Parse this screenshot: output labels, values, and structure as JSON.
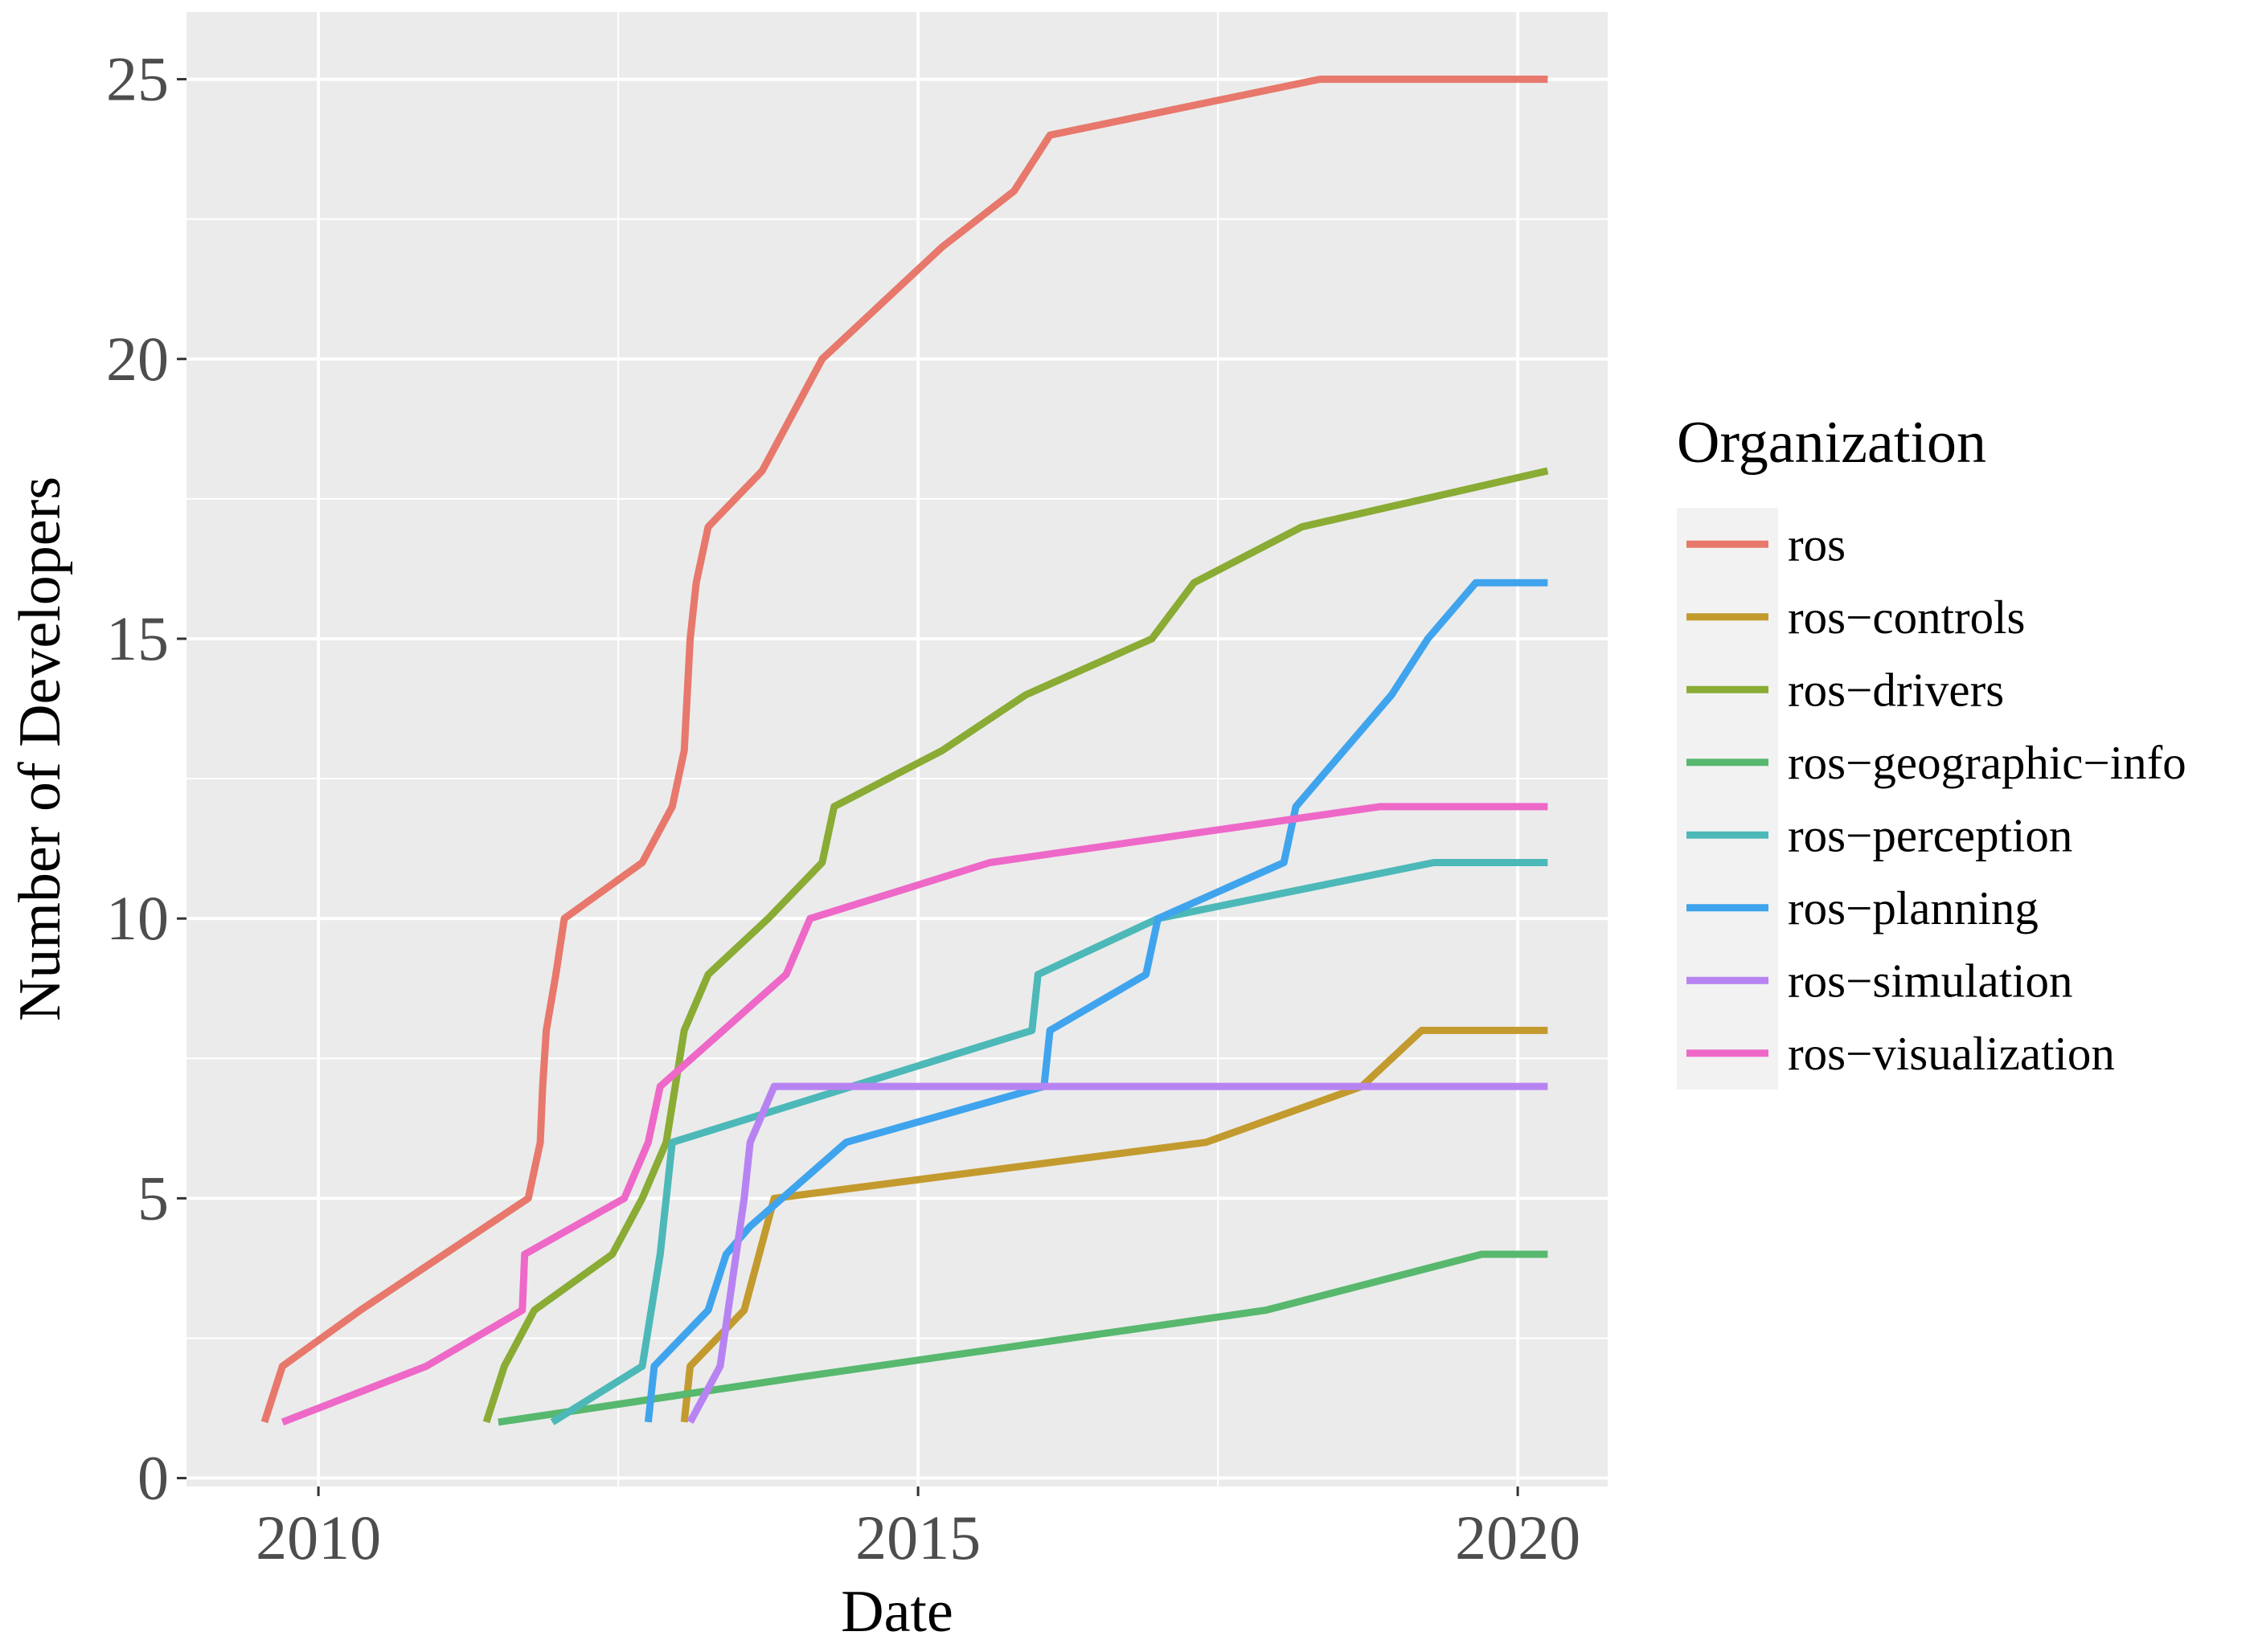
{
  "chart_data": {
    "type": "line",
    "xlabel": "Date",
    "ylabel": "Number of Developers",
    "x_tick_labels": [
      "2010",
      "2015",
      "2020"
    ],
    "y_tick_labels": [
      "0",
      "5",
      "10",
      "15",
      "20",
      "25"
    ],
    "xlim": [
      2008.9,
      2020.75
    ],
    "ylim": [
      -0.15,
      26.2
    ],
    "grid": true,
    "legend": {
      "title": "Organization",
      "position": "right"
    },
    "background_color": "#ebebeb",
    "gridline_color": "#ffffff",
    "series": [
      {
        "name": "ros",
        "color": "#e7786b",
        "points": [
          [
            2009.55,
            1
          ],
          [
            2009.7,
            2
          ],
          [
            2010.35,
            3
          ],
          [
            2011.75,
            5
          ],
          [
            2011.85,
            6
          ],
          [
            2011.87,
            7
          ],
          [
            2011.9,
            8
          ],
          [
            2011.98,
            9
          ],
          [
            2012.05,
            10
          ],
          [
            2012.7,
            11
          ],
          [
            2012.95,
            12
          ],
          [
            2013.05,
            13
          ],
          [
            2013.1,
            15
          ],
          [
            2013.15,
            16
          ],
          [
            2013.25,
            17
          ],
          [
            2013.7,
            18
          ],
          [
            2013.95,
            19
          ],
          [
            2014.2,
            20
          ],
          [
            2014.7,
            21
          ],
          [
            2015.2,
            22
          ],
          [
            2015.8,
            23
          ],
          [
            2016.1,
            24
          ],
          [
            2018.35,
            25
          ],
          [
            2020.25,
            25
          ]
        ]
      },
      {
        "name": "ros-controls",
        "color": "#c39a2e",
        "points": [
          [
            2013.05,
            1
          ],
          [
            2013.1,
            2
          ],
          [
            2013.55,
            3
          ],
          [
            2013.8,
            5
          ],
          [
            2017.4,
            6
          ],
          [
            2018.7,
            7
          ],
          [
            2019.2,
            8
          ],
          [
            2020.25,
            8
          ]
        ]
      },
      {
        "name": "ros-drivers",
        "color": "#8aab34",
        "points": [
          [
            2011.4,
            1
          ],
          [
            2011.55,
            2
          ],
          [
            2011.8,
            3
          ],
          [
            2012.45,
            4
          ],
          [
            2012.7,
            5
          ],
          [
            2012.9,
            6
          ],
          [
            2013.05,
            8
          ],
          [
            2013.25,
            9
          ],
          [
            2013.75,
            10
          ],
          [
            2014.2,
            11
          ],
          [
            2014.3,
            12
          ],
          [
            2015.2,
            13
          ],
          [
            2015.9,
            14
          ],
          [
            2016.95,
            15
          ],
          [
            2017.3,
            16
          ],
          [
            2018.2,
            17
          ],
          [
            2020.25,
            18
          ]
        ]
      },
      {
        "name": "ros-geographic-info",
        "color": "#57b86e",
        "points": [
          [
            2011.5,
            1
          ],
          [
            2014.0,
            1.8
          ],
          [
            2017.9,
            3
          ],
          [
            2019.7,
            4
          ],
          [
            2020.25,
            4
          ]
        ]
      },
      {
        "name": "ros-perception",
        "color": "#4db8b8",
        "points": [
          [
            2011.95,
            1
          ],
          [
            2012.7,
            2
          ],
          [
            2012.85,
            4
          ],
          [
            2012.9,
            5
          ],
          [
            2012.95,
            6
          ],
          [
            2015.95,
            8
          ],
          [
            2016.0,
            9
          ],
          [
            2017.0,
            10
          ],
          [
            2019.3,
            11
          ],
          [
            2020.25,
            11
          ]
        ]
      },
      {
        "name": "ros-planning",
        "color": "#3fa4ed",
        "points": [
          [
            2012.75,
            1
          ],
          [
            2012.8,
            2
          ],
          [
            2013.25,
            3
          ],
          [
            2013.4,
            4
          ],
          [
            2013.6,
            4.5
          ],
          [
            2014.4,
            6
          ],
          [
            2016.05,
            7
          ],
          [
            2016.1,
            8
          ],
          [
            2016.9,
            9
          ],
          [
            2017.0,
            10
          ],
          [
            2018.05,
            11
          ],
          [
            2018.15,
            12
          ],
          [
            2018.55,
            13
          ],
          [
            2018.95,
            14
          ],
          [
            2019.25,
            15
          ],
          [
            2019.65,
            16
          ],
          [
            2020.25,
            16
          ]
        ]
      },
      {
        "name": "ros-simulation",
        "color": "#b783f2",
        "points": [
          [
            2013.1,
            1
          ],
          [
            2013.35,
            2
          ],
          [
            2013.55,
            5
          ],
          [
            2013.6,
            6
          ],
          [
            2013.8,
            7
          ],
          [
            2020.25,
            7
          ]
        ]
      },
      {
        "name": "ros-visualization",
        "color": "#ee68c8",
        "points": [
          [
            2009.7,
            1
          ],
          [
            2010.9,
            2
          ],
          [
            2011.7,
            3
          ],
          [
            2011.72,
            4
          ],
          [
            2012.55,
            5
          ],
          [
            2012.75,
            6
          ],
          [
            2012.85,
            7
          ],
          [
            2013.9,
            9
          ],
          [
            2014.1,
            10
          ],
          [
            2015.6,
            11
          ],
          [
            2018.85,
            12
          ],
          [
            2020.25,
            12
          ]
        ]
      }
    ]
  }
}
